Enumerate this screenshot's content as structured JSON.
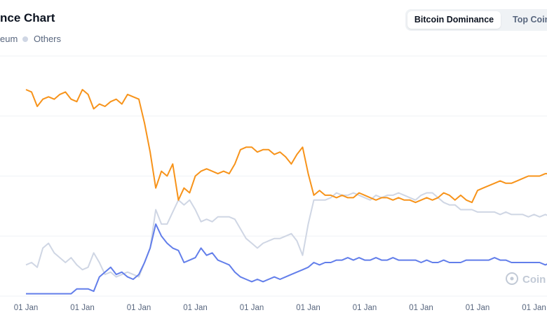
{
  "header": {
    "title": "nce Chart",
    "tabs": [
      {
        "label": "Bitcoin Dominance",
        "active": true
      },
      {
        "label": "Top Coin",
        "active": false
      }
    ]
  },
  "legend": [
    {
      "label": "eum",
      "color": "#cfd6e4"
    },
    {
      "label": "Others",
      "color": "#cfd6e4"
    }
  ],
  "watermark": "Coin",
  "colors": {
    "bitcoin": "#f7931a",
    "ethereum": "#627eea",
    "others": "#cfd6e4",
    "grid": "#eff2f5"
  },
  "chart_data": {
    "type": "line",
    "x_tick_labels": [
      "01 Jan",
      "01 Jan",
      "01 Jan",
      "01 Jan",
      "01 Jan",
      "01 Jan",
      "01 Jan",
      "01 Jan",
      "01 Jan",
      "01 Jan"
    ],
    "ylim": [
      0,
      100
    ],
    "grid": true,
    "series": [
      {
        "color": "#f7931a",
        "x": [
          0,
          0.1,
          0.2,
          0.3,
          0.4,
          0.5,
          0.6,
          0.7,
          0.8,
          0.9,
          1.0,
          1.1,
          1.2,
          1.3,
          1.4,
          1.5,
          1.6,
          1.7,
          1.8,
          1.9,
          2.0,
          2.1,
          2.2,
          2.3,
          2.4,
          2.5,
          2.6,
          2.7,
          2.8,
          2.9,
          3.0,
          3.1,
          3.2,
          3.3,
          3.4,
          3.5,
          3.6,
          3.7,
          3.8,
          3.9,
          4.0,
          4.1,
          4.2,
          4.3,
          4.4,
          4.5,
          4.6,
          4.7,
          4.8,
          4.9,
          5.0,
          5.1,
          5.2,
          5.3,
          5.4,
          5.5,
          5.6,
          5.7,
          5.8,
          5.9,
          6.0,
          6.1,
          6.2,
          6.3,
          6.4,
          6.5,
          6.6,
          6.7,
          6.8,
          6.9,
          7.0,
          7.1,
          7.2,
          7.3,
          7.4,
          7.5,
          7.6,
          7.7,
          7.8,
          7.9,
          8.0,
          8.1,
          8.2,
          8.3,
          8.4,
          8.5,
          8.6,
          8.7,
          8.8,
          8.9,
          9.0,
          9.1,
          9.2,
          9.3,
          9.4,
          9.5,
          9.6,
          9.7
        ],
        "values": [
          86,
          85,
          79,
          82,
          83,
          82,
          84,
          85,
          82,
          81,
          86,
          84,
          78,
          80,
          79,
          81,
          82,
          80,
          84,
          83,
          82,
          72,
          60,
          45,
          52,
          50,
          55,
          40,
          45,
          43,
          50,
          52,
          53,
          52,
          51,
          52,
          51,
          55,
          61,
          62,
          62,
          60,
          61,
          61,
          59,
          60,
          58,
          55,
          59,
          62,
          51,
          42,
          44,
          42,
          42,
          41,
          42,
          41,
          41,
          43,
          42,
          41,
          40,
          41,
          41,
          40,
          41,
          40,
          40,
          39,
          40,
          41,
          40,
          41,
          43,
          42,
          40,
          42,
          40,
          39,
          44,
          45,
          46,
          47,
          48,
          47,
          47,
          48,
          49,
          50,
          50,
          50,
          51,
          51,
          51,
          50,
          50,
          49
        ]
      },
      {
        "color": "#627eea",
        "x": [
          0,
          0.1,
          0.2,
          0.3,
          0.4,
          0.5,
          0.6,
          0.7,
          0.8,
          0.9,
          1.0,
          1.1,
          1.2,
          1.3,
          1.4,
          1.5,
          1.6,
          1.7,
          1.8,
          1.9,
          2.0,
          2.1,
          2.2,
          2.3,
          2.4,
          2.5,
          2.6,
          2.7,
          2.8,
          2.9,
          3.0,
          3.1,
          3.2,
          3.3,
          3.4,
          3.5,
          3.6,
          3.7,
          3.8,
          3.9,
          4.0,
          4.1,
          4.2,
          4.3,
          4.4,
          4.5,
          4.6,
          4.7,
          4.8,
          4.9,
          5.0,
          5.1,
          5.2,
          5.3,
          5.4,
          5.5,
          5.6,
          5.7,
          5.8,
          5.9,
          6.0,
          6.1,
          6.2,
          6.3,
          6.4,
          6.5,
          6.6,
          6.7,
          6.8,
          6.9,
          7.0,
          7.1,
          7.2,
          7.3,
          7.4,
          7.5,
          7.6,
          7.7,
          7.8,
          7.9,
          8.0,
          8.1,
          8.2,
          8.3,
          8.4,
          8.5,
          8.6,
          8.7,
          8.8,
          8.9,
          9.0,
          9.1,
          9.2,
          9.3,
          9.4,
          9.5,
          9.6,
          9.7
        ],
        "values": [
          1,
          1,
          1,
          1,
          1,
          1,
          1,
          1,
          1,
          3,
          3,
          3,
          2,
          8,
          10,
          12,
          9,
          10,
          8,
          7,
          9,
          14,
          20,
          30,
          25,
          22,
          20,
          19,
          14,
          15,
          16,
          20,
          17,
          18,
          15,
          14,
          13,
          10,
          8,
          7,
          6,
          7,
          6,
          7,
          8,
          7,
          8,
          9,
          10,
          11,
          12,
          14,
          13,
          14,
          14,
          15,
          15,
          16,
          15,
          16,
          15,
          15,
          16,
          15,
          15,
          16,
          15,
          15,
          15,
          15,
          14,
          15,
          14,
          14,
          15,
          14,
          14,
          14,
          15,
          15,
          15,
          15,
          15,
          16,
          15,
          15,
          14,
          14,
          14,
          14,
          14,
          14,
          13,
          14,
          13,
          14,
          13,
          14
        ]
      },
      {
        "color": "#cfd6e4",
        "x": [
          0,
          0.1,
          0.2,
          0.3,
          0.4,
          0.5,
          0.6,
          0.7,
          0.8,
          0.9,
          1.0,
          1.1,
          1.2,
          1.3,
          1.4,
          1.5,
          1.6,
          1.7,
          1.8,
          1.9,
          2.0,
          2.1,
          2.2,
          2.3,
          2.4,
          2.5,
          2.6,
          2.7,
          2.8,
          2.9,
          3.0,
          3.1,
          3.2,
          3.3,
          3.4,
          3.5,
          3.6,
          3.7,
          3.8,
          3.9,
          4.0,
          4.1,
          4.2,
          4.3,
          4.4,
          4.5,
          4.6,
          4.7,
          4.8,
          4.9,
          5.0,
          5.1,
          5.2,
          5.3,
          5.4,
          5.5,
          5.6,
          5.7,
          5.8,
          5.9,
          6.0,
          6.1,
          6.2,
          6.3,
          6.4,
          6.5,
          6.6,
          6.7,
          6.8,
          6.9,
          7.0,
          7.1,
          7.2,
          7.3,
          7.4,
          7.5,
          7.6,
          7.7,
          7.8,
          7.9,
          8.0,
          8.1,
          8.2,
          8.3,
          8.4,
          8.5,
          8.6,
          8.7,
          8.8,
          8.9,
          9.0,
          9.1,
          9.2,
          9.3,
          9.4,
          9.5,
          9.6,
          9.7
        ],
        "values": [
          13,
          14,
          12,
          20,
          22,
          18,
          16,
          14,
          16,
          13,
          11,
          12,
          18,
          14,
          9,
          10,
          8,
          9,
          10,
          9,
          8,
          14,
          20,
          36,
          30,
          30,
          35,
          40,
          38,
          40,
          36,
          31,
          32,
          31,
          33,
          33,
          33,
          32,
          28,
          24,
          22,
          20,
          22,
          23,
          24,
          24,
          25,
          26,
          23,
          17,
          30,
          40,
          40,
          40,
          41,
          43,
          42,
          42,
          43,
          42,
          41,
          40,
          42,
          41,
          42,
          42,
          43,
          42,
          41,
          40,
          42,
          43,
          43,
          41,
          39,
          38,
          38,
          36,
          36,
          36,
          35,
          35,
          35,
          35,
          34,
          35,
          34,
          34,
          34,
          33,
          34,
          33,
          34,
          33,
          33,
          33,
          33,
          33
        ]
      }
    ]
  }
}
